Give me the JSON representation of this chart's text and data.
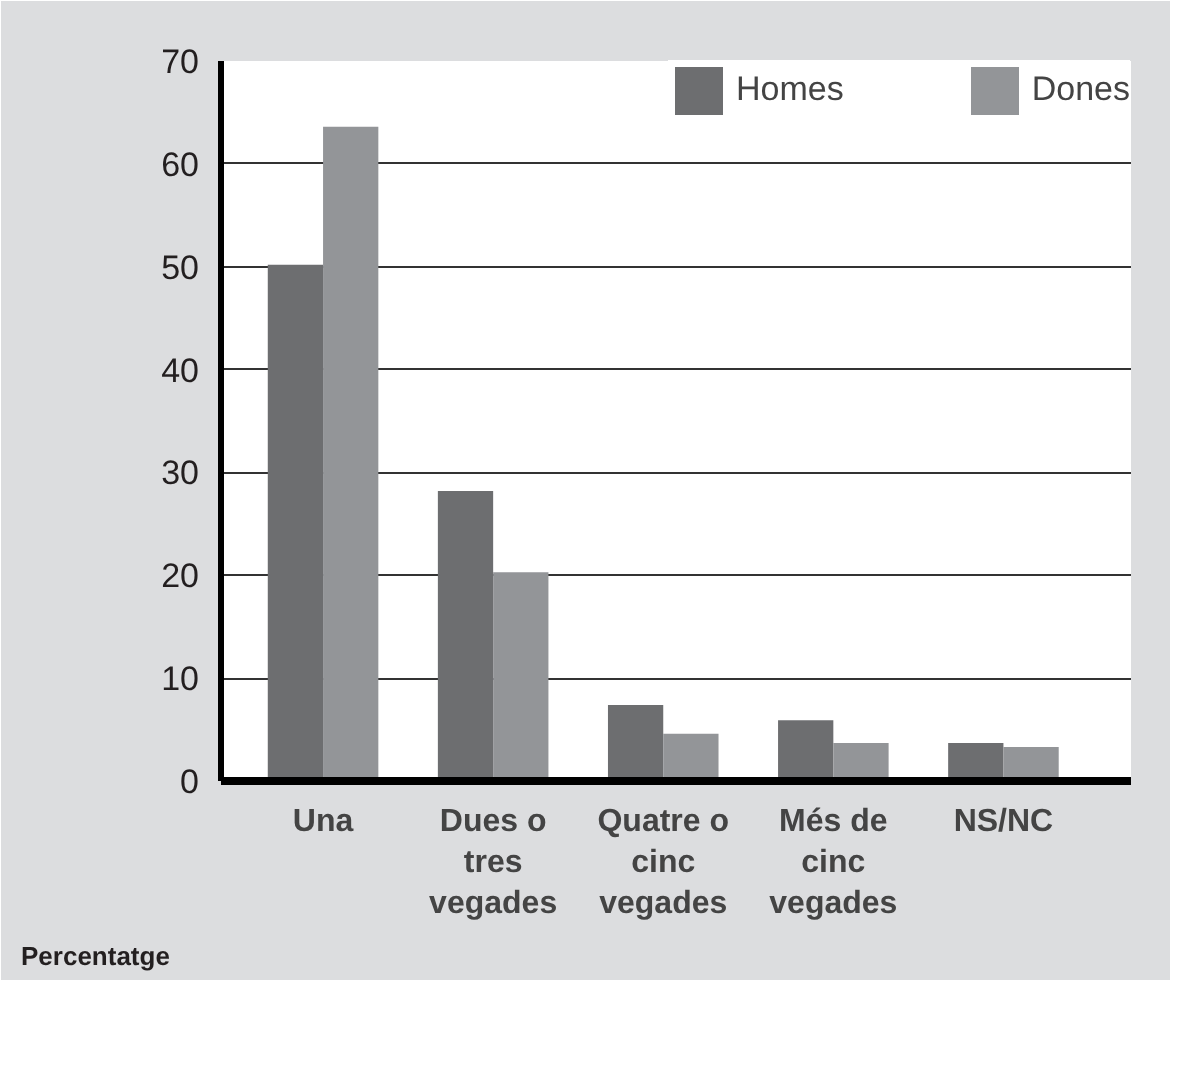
{
  "chart_data": {
    "type": "bar",
    "xlabel": "Percentatge",
    "categories": [
      "Una",
      "Dues o tres vegades",
      "Quatre o cinc vegades",
      "Més de cinc vegades",
      "NS/NC"
    ],
    "series": [
      {
        "name": "Homes",
        "color": "#6d6e70",
        "values": [
          50.2,
          28.2,
          7.4,
          5.9,
          3.7
        ]
      },
      {
        "name": "Dones",
        "color": "#939598",
        "values": [
          63.6,
          20.3,
          4.6,
          3.7,
          3.3
        ]
      }
    ],
    "ylim": [
      0,
      70
    ],
    "yticks": [
      0,
      10,
      20,
      30,
      40,
      50,
      60,
      70
    ],
    "grid": "y",
    "legend": "top right"
  }
}
